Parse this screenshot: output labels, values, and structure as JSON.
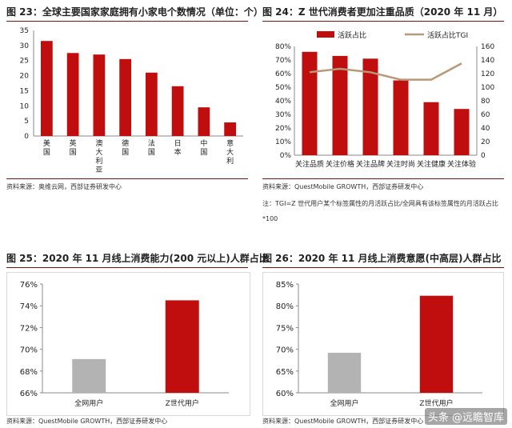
{
  "panels": [
    {
      "title": "图 23：全球主要国家家庭拥有小家电个数情况（单位：个）",
      "source": "资料来源：奥维云网，西部证券研发中心"
    },
    {
      "title": "图 24：Z 世代消费者更加注重品质（2020 年 11 月）",
      "source": "资料来源：QuestMobile GROWTH，西部证券研发中心",
      "note1": "注：TGI=Z 世代用户某个标签属性的月活跃占比/全网具有该标签属性的月活跃占比",
      "note2": "*100"
    },
    {
      "title": "图 25：2020 年 11 月线上消费能力(200 元以上)人群占比",
      "source": "资料来源：QuestMobile GROWTH，西部证券研发中心"
    },
    {
      "title": "图 26：2020 年 11 月线上消费意愿(中高层)人群占比",
      "source": "资料来源：QuestMobile GROWTH，西部证券研发中心"
    }
  ],
  "watermark": "头条 @远瞻智库",
  "chart_data": [
    {
      "type": "bar",
      "categories": [
        "美国",
        "英国",
        "澳大利亚",
        "德国",
        "法国",
        "日本",
        "中国",
        "意大利"
      ],
      "values": [
        31.5,
        27.5,
        27,
        25.5,
        21,
        16.5,
        9.5,
        4.5
      ],
      "ylim": [
        0,
        35
      ],
      "yticks": [
        0,
        5,
        10,
        15,
        20,
        25,
        30,
        35
      ],
      "color": "#c00d0d",
      "grid": false
    },
    {
      "type": "bar+line",
      "categories": [
        "关注品质",
        "关注价格",
        "关注品牌",
        "关注时尚",
        "关注健康",
        "关注体验"
      ],
      "series": [
        {
          "name": "活跃占比",
          "type": "bar",
          "axis": "left",
          "values": [
            76,
            73,
            71,
            55,
            39,
            34
          ],
          "color": "#c00d0d"
        },
        {
          "name": "活跃占比TGI",
          "type": "line",
          "axis": "right",
          "values": [
            122,
            127,
            122,
            111,
            111,
            135
          ],
          "color": "#b59a7a"
        }
      ],
      "ylim": [
        0,
        80
      ],
      "yticks_left": [
        "0%",
        "10%",
        "20%",
        "30%",
        "40%",
        "50%",
        "60%",
        "70%",
        "80%"
      ],
      "y2lim": [
        0,
        160
      ],
      "yticks_right": [
        0,
        20,
        40,
        60,
        80,
        100,
        120,
        140,
        160
      ],
      "legend": "top",
      "grid": false
    },
    {
      "type": "bar",
      "categories": [
        "全网用户",
        "Z世代用户"
      ],
      "values": [
        69.1,
        74.5
      ],
      "colors": [
        "#b3b3b3",
        "#c00d0d"
      ],
      "ylim": [
        66,
        76
      ],
      "yticks": [
        "66%",
        "68%",
        "70%",
        "72%",
        "74%",
        "76%"
      ],
      "grid": false
    },
    {
      "type": "bar",
      "categories": [
        "全网用户",
        "Z世代用户"
      ],
      "values": [
        69.2,
        82.3
      ],
      "colors": [
        "#b3b3b3",
        "#c00d0d"
      ],
      "ylim": [
        60,
        85
      ],
      "yticks": [
        "60%",
        "65%",
        "70%",
        "75%",
        "80%",
        "85%"
      ],
      "grid": false
    }
  ]
}
